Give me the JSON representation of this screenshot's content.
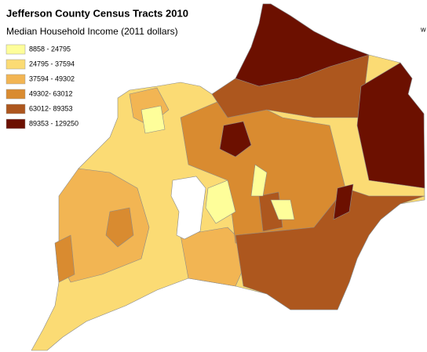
{
  "header": {
    "title": "Jefferson County Census Tracts 2010",
    "subtitle": "Median Household Income (2011 dollars)"
  },
  "legend": {
    "items": [
      {
        "label": "8858 - 24795",
        "color": "#fefe9a"
      },
      {
        "label": "24795 - 37594",
        "color": "#fbdb74"
      },
      {
        "label": "37594 - 49302",
        "color": "#f2b553"
      },
      {
        "label": "49302- 63012",
        "color": "#d98b30"
      },
      {
        "label": "63012- 89353",
        "color": "#ad571e"
      },
      {
        "label": "89353 - 129250",
        "color": "#6c1000"
      }
    ]
  },
  "compass_label": "w"
}
